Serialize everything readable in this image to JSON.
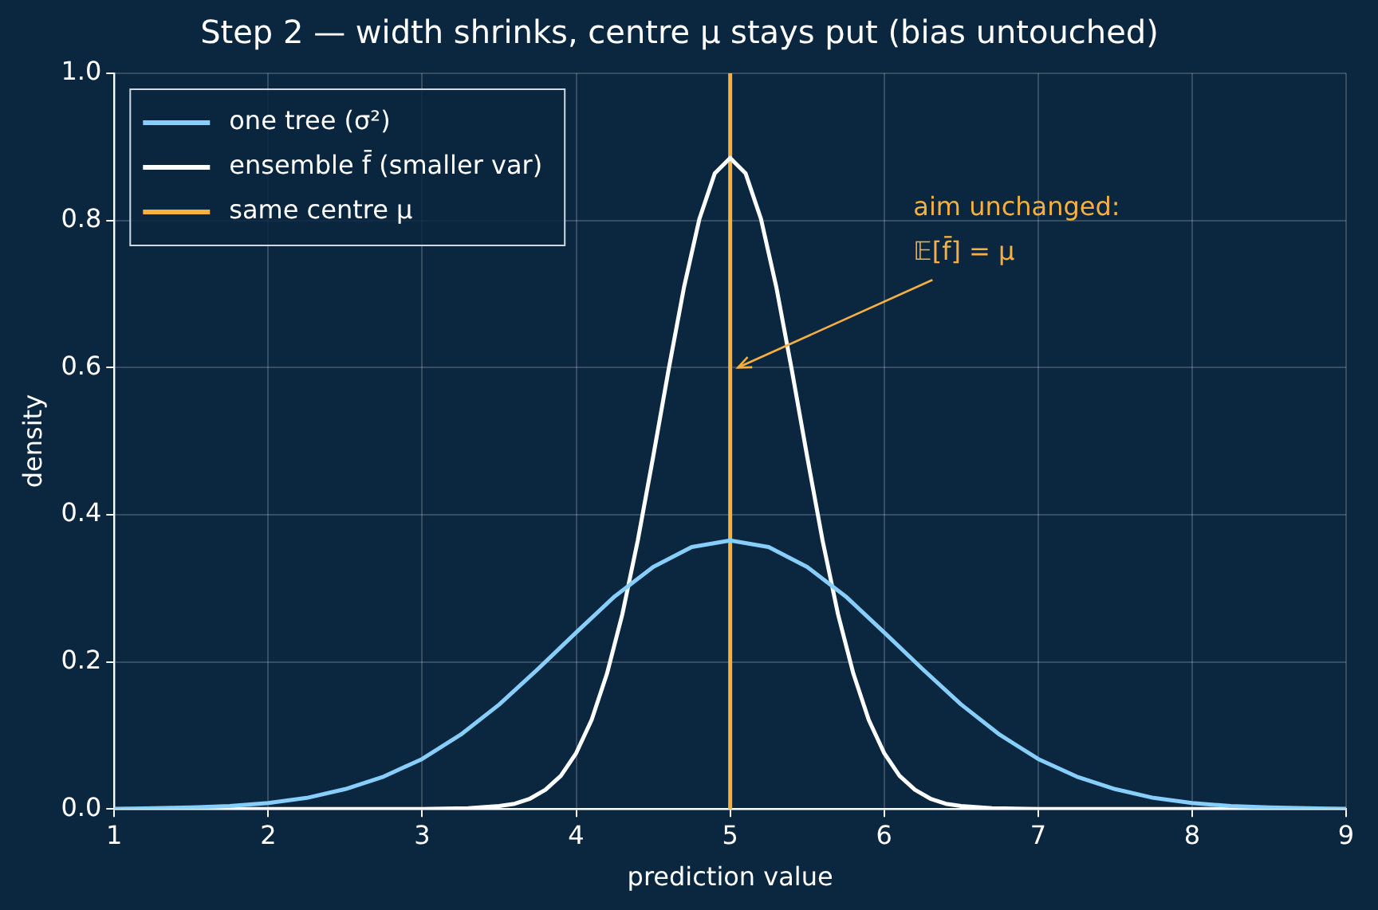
{
  "chart_data": {
    "type": "line",
    "title": "Step 2 — width shrinks, centre μ stays put (bias untouched)",
    "xlabel": "prediction value",
    "ylabel": "density",
    "xlim": [
      1,
      9
    ],
    "xticks": [
      1,
      2,
      3,
      4,
      5,
      6,
      7,
      8,
      9
    ],
    "ylim": [
      0,
      1
    ],
    "yticks": [
      {
        "value": 0,
        "label": "0.0"
      },
      {
        "value": 0.2,
        "label": "0.2"
      },
      {
        "value": 0.4,
        "label": "0.4"
      },
      {
        "value": 0.6,
        "label": "0.6"
      },
      {
        "value": 0.8,
        "label": "0.8"
      },
      {
        "value": 1,
        "label": "1.0"
      }
    ],
    "grid": true,
    "legend": "top left",
    "marker": "none",
    "line_style": "solid",
    "series": [
      {
        "name": "one tree (σ²)",
        "color": "#87cefa",
        "x": [
          1,
          1.25,
          1.5,
          1.75,
          2,
          2.25,
          2.5,
          2.75,
          3,
          3.25,
          3.5,
          3.75,
          4,
          4.25,
          4.5,
          4.75,
          5,
          5.25,
          5.5,
          5.75,
          6,
          6.25,
          6.5,
          6.75,
          7,
          7.25,
          7.5,
          7.75,
          8,
          8.25,
          8.5,
          8.75,
          9
        ],
        "values": [
          0,
          0.001,
          0.002,
          0.004,
          0.008,
          0.015,
          0.027,
          0.044,
          0.068,
          0.101,
          0.142,
          0.19,
          0.24,
          0.289,
          0.329,
          0.356,
          0.365,
          0.356,
          0.329,
          0.289,
          0.24,
          0.19,
          0.142,
          0.101,
          0.068,
          0.044,
          0.027,
          0.015,
          0.008,
          0.004,
          0.002,
          0.001,
          0
        ]
      },
      {
        "name": "ensemble f̄ (smaller var)",
        "color": "#ffffff",
        "x": [
          1,
          3,
          3.3,
          3.5,
          3.6,
          3.7,
          3.8,
          3.9,
          4,
          4.1,
          4.2,
          4.3,
          4.4,
          4.5,
          4.6,
          4.7,
          4.8,
          4.9,
          5,
          5.1,
          5.2,
          5.3,
          5.4,
          5.5,
          5.6,
          5.7,
          5.8,
          5.9,
          6,
          6.1,
          6.2,
          6.3,
          6.4,
          6.5,
          6.7,
          7,
          9
        ],
        "values": [
          0,
          0,
          0.001,
          0.004,
          0.007,
          0.014,
          0.026,
          0.045,
          0.076,
          0.121,
          0.184,
          0.265,
          0.365,
          0.479,
          0.597,
          0.709,
          0.802,
          0.864,
          0.885,
          0.864,
          0.802,
          0.709,
          0.597,
          0.479,
          0.365,
          0.265,
          0.184,
          0.121,
          0.076,
          0.045,
          0.026,
          0.014,
          0.007,
          0.004,
          0.001,
          0,
          0
        ]
      },
      {
        "name": "same centre μ",
        "color": "#f5b041",
        "x": [
          5,
          5
        ],
        "values": [
          0,
          1
        ]
      }
    ],
    "annotations": [
      {
        "text": "aim unchanged:\n𝔼[f̄] = μ",
        "x": 5.05,
        "y": 0.6
      }
    ]
  }
}
